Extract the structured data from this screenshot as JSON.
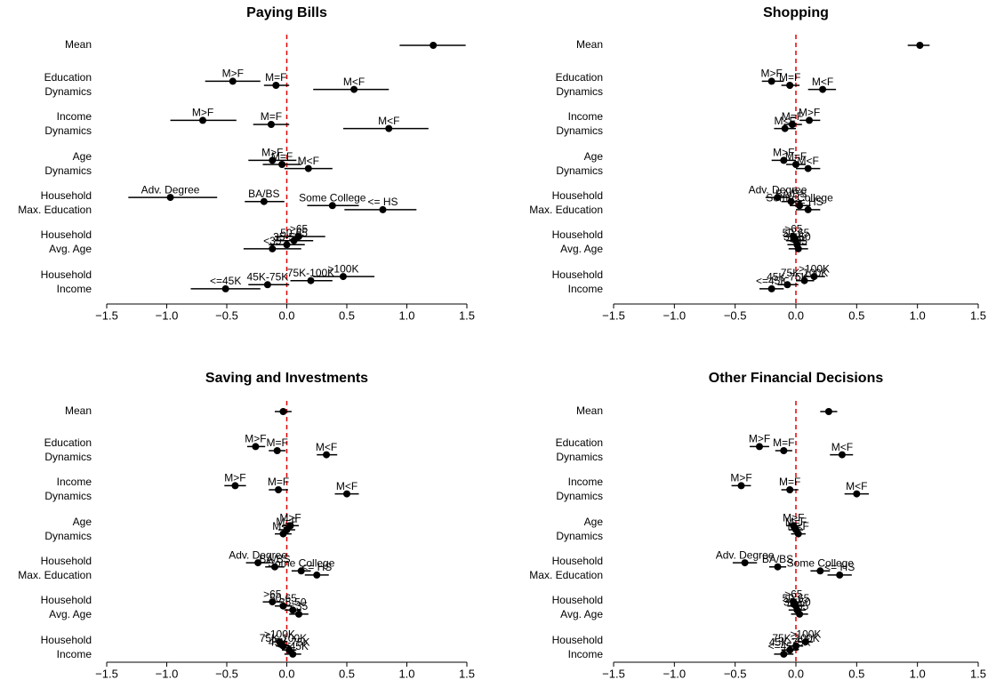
{
  "chart_data": [
    {
      "type": "dot",
      "title": "Paying Bills",
      "xlim": [
        -1.5,
        1.5
      ],
      "xticks": [
        {
          "value": -1.5,
          "label": "−1.5"
        },
        {
          "value": -1,
          "label": "−1.0"
        },
        {
          "value": -0.5,
          "label": "−0.5"
        },
        {
          "value": 0,
          "label": "0.0"
        },
        0.5,
        {
          "value": 1,
          "label": "1.0"
        },
        1.5
      ],
      "reference_color": "#e00000",
      "point_color": "#000000",
      "rows": [
        {
          "name": [
            "Mean"
          ],
          "points": [
            {
              "value": 1.22,
              "lower": 0.94,
              "upper": 1.49
            }
          ]
        },
        {
          "name": [
            "Education",
            "Dynamics"
          ],
          "points": [
            {
              "label": "M>F",
              "value": -0.45,
              "lower": -0.68,
              "upper": -0.22
            },
            {
              "label": "M=F",
              "value": -0.09,
              "lower": -0.19,
              "upper": 0.02
            },
            {
              "label": "M<F",
              "value": 0.56,
              "lower": 0.22,
              "upper": 0.85
            }
          ]
        },
        {
          "name": [
            "Income",
            "Dynamics"
          ],
          "points": [
            {
              "label": "M>F",
              "value": -0.7,
              "lower": -0.97,
              "upper": -0.42
            },
            {
              "label": "M=F",
              "value": -0.13,
              "lower": -0.28,
              "upper": 0.02
            },
            {
              "label": "M<F",
              "value": 0.85,
              "lower": 0.47,
              "upper": 1.18
            }
          ]
        },
        {
          "name": [
            "Age",
            "Dynamics"
          ],
          "points": [
            {
              "label": "M>F",
              "value": -0.12,
              "lower": -0.32,
              "upper": 0.08
            },
            {
              "label": "M=F",
              "value": -0.04,
              "lower": -0.2,
              "upper": 0.12
            },
            {
              "label": "M<F",
              "value": 0.18,
              "lower": -0.02,
              "upper": 0.38
            }
          ]
        },
        {
          "name": [
            "Household",
            "Max. Education"
          ],
          "points": [
            {
              "label": "Adv. Degree",
              "value": -0.97,
              "lower": -1.32,
              "upper": -0.58
            },
            {
              "label": "BA/BS",
              "value": -0.19,
              "lower": -0.35,
              "upper": -0.02
            },
            {
              "label": "Some College",
              "value": 0.38,
              "lower": 0.17,
              "upper": 0.6
            },
            {
              "label": "<= HS",
              "value": 0.8,
              "lower": 0.48,
              "upper": 1.08
            }
          ]
        },
        {
          "name": [
            "Household",
            "Avg. Age"
          ],
          "points": [
            {
              "label": ">65",
              "value": 0.1,
              "lower": -0.1,
              "upper": 0.32
            },
            {
              "label": "50-65",
              "value": 0.06,
              "lower": -0.1,
              "upper": 0.22
            },
            {
              "label": "35-50",
              "value": 0.0,
              "lower": -0.15,
              "upper": 0.15
            },
            {
              "label": "<35",
              "value": -0.12,
              "lower": -0.36,
              "upper": 0.12
            }
          ]
        },
        {
          "name": [
            "Household",
            "Income"
          ],
          "points": [
            {
              "label": ">100K",
              "value": 0.47,
              "lower": 0.22,
              "upper": 0.73
            },
            {
              "label": "75K-100K",
              "value": 0.2,
              "lower": 0.03,
              "upper": 0.38
            },
            {
              "label": "45K-75K",
              "value": -0.16,
              "lower": -0.32,
              "upper": 0.02
            },
            {
              "label": "<=45K",
              "value": -0.51,
              "lower": -0.8,
              "upper": -0.22
            }
          ]
        }
      ]
    },
    {
      "type": "dot",
      "title": "Shopping",
      "xlim": [
        -1.5,
        1.5
      ],
      "xticks": [
        {
          "value": -1.5,
          "label": "−1.5"
        },
        {
          "value": -1,
          "label": "−1.0"
        },
        {
          "value": -0.5,
          "label": "−0.5"
        },
        {
          "value": 0,
          "label": "0.0"
        },
        0.5,
        {
          "value": 1,
          "label": "1.0"
        },
        1.5
      ],
      "reference_color": "#e00000",
      "point_color": "#000000",
      "rows": [
        {
          "name": [
            "Mean"
          ],
          "points": [
            {
              "value": 1.02,
              "lower": 0.92,
              "upper": 1.1
            }
          ]
        },
        {
          "name": [
            "Education",
            "Dynamics"
          ],
          "points": [
            {
              "label": "M>F",
              "value": -0.2,
              "lower": -0.28,
              "upper": -0.1
            },
            {
              "label": "M=F",
              "value": -0.05,
              "lower": -0.12,
              "upper": 0.03
            },
            {
              "label": "M<F",
              "value": 0.22,
              "lower": 0.1,
              "upper": 0.33
            }
          ]
        },
        {
          "name": [
            "Income",
            "Dynamics"
          ],
          "points": [
            {
              "label": "M>F",
              "value": 0.11,
              "lower": 0.03,
              "upper": 0.2
            },
            {
              "label": "M=F",
              "value": -0.03,
              "lower": -0.1,
              "upper": 0.05
            },
            {
              "label": "M<F",
              "value": -0.09,
              "lower": -0.18,
              "upper": 0.0
            }
          ]
        },
        {
          "name": [
            "Age",
            "Dynamics"
          ],
          "points": [
            {
              "label": "M>F",
              "value": -0.1,
              "lower": -0.2,
              "upper": 0.0
            },
            {
              "label": "M=F",
              "value": 0.0,
              "lower": -0.08,
              "upper": 0.08
            },
            {
              "label": "M<F",
              "value": 0.1,
              "lower": 0.0,
              "upper": 0.2
            }
          ]
        },
        {
          "name": [
            "Household",
            "Max. Education"
          ],
          "points": [
            {
              "label": "Adv. Degree",
              "value": -0.15,
              "lower": -0.25,
              "upper": -0.05
            },
            {
              "label": "BA/BS",
              "value": -0.04,
              "lower": -0.12,
              "upper": 0.05
            },
            {
              "label": "Some College",
              "value": 0.03,
              "lower": -0.05,
              "upper": 0.12
            },
            {
              "label": "<= HS",
              "value": 0.1,
              "lower": 0.0,
              "upper": 0.2
            }
          ]
        },
        {
          "name": [
            "Household",
            "Avg. Age"
          ],
          "points": [
            {
              "label": ">65",
              "value": -0.02,
              "lower": -0.1,
              "upper": 0.06
            },
            {
              "label": "50-65",
              "value": 0.0,
              "lower": -0.08,
              "upper": 0.08
            },
            {
              "label": "35-50",
              "value": 0.01,
              "lower": -0.07,
              "upper": 0.09
            },
            {
              "label": "<35",
              "value": 0.02,
              "lower": -0.06,
              "upper": 0.1
            }
          ]
        },
        {
          "name": [
            "Household",
            "Income"
          ],
          "points": [
            {
              "label": ">100K",
              "value": 0.15,
              "lower": 0.07,
              "upper": 0.24
            },
            {
              "label": "75K-100K",
              "value": 0.07,
              "lower": 0.0,
              "upper": 0.15
            },
            {
              "label": "45K-75K",
              "value": -0.07,
              "lower": -0.15,
              "upper": 0.02
            },
            {
              "label": "<=45K",
              "value": -0.2,
              "lower": -0.3,
              "upper": -0.1
            }
          ]
        }
      ]
    },
    {
      "type": "dot",
      "title": "Saving and Investments",
      "xlim": [
        -1.5,
        1.5
      ],
      "xticks": [
        {
          "value": -1.5,
          "label": "−1.5"
        },
        {
          "value": -1,
          "label": "−1.0"
        },
        {
          "value": -0.5,
          "label": "−0.5"
        },
        {
          "value": 0,
          "label": "0.0"
        },
        0.5,
        {
          "value": 1,
          "label": "1.0"
        },
        1.5
      ],
      "reference_color": "#e00000",
      "point_color": "#000000",
      "rows": [
        {
          "name": [
            "Mean"
          ],
          "points": [
            {
              "value": -0.03,
              "lower": -0.1,
              "upper": 0.04
            }
          ]
        },
        {
          "name": [
            "Education",
            "Dynamics"
          ],
          "points": [
            {
              "label": "M>F",
              "value": -0.26,
              "lower": -0.33,
              "upper": -0.18
            },
            {
              "label": "M=F",
              "value": -0.08,
              "lower": -0.15,
              "upper": -0.01
            },
            {
              "label": "M<F",
              "value": 0.33,
              "lower": 0.25,
              "upper": 0.42
            }
          ]
        },
        {
          "name": [
            "Income",
            "Dynamics"
          ],
          "points": [
            {
              "label": "M>F",
              "value": -0.43,
              "lower": -0.52,
              "upper": -0.34
            },
            {
              "label": "M=F",
              "value": -0.07,
              "lower": -0.15,
              "upper": 0.01
            },
            {
              "label": "M<F",
              "value": 0.5,
              "lower": 0.4,
              "upper": 0.6
            }
          ]
        },
        {
          "name": [
            "Age",
            "Dynamics"
          ],
          "points": [
            {
              "label": "M>F",
              "value": 0.03,
              "lower": -0.04,
              "upper": 0.1
            },
            {
              "label": "M=F",
              "value": 0.0,
              "lower": -0.07,
              "upper": 0.07
            },
            {
              "label": "M<F",
              "value": -0.03,
              "lower": -0.1,
              "upper": 0.04
            }
          ]
        },
        {
          "name": [
            "Household",
            "Max. Education"
          ],
          "points": [
            {
              "label": "Adv. Degree",
              "value": -0.24,
              "lower": -0.34,
              "upper": -0.14
            },
            {
              "label": "BA/BS",
              "value": -0.1,
              "lower": -0.18,
              "upper": -0.02
            },
            {
              "label": "Some College",
              "value": 0.12,
              "lower": 0.04,
              "upper": 0.2
            },
            {
              "label": "<= HS",
              "value": 0.25,
              "lower": 0.15,
              "upper": 0.35
            }
          ]
        },
        {
          "name": [
            "Household",
            "Avg. Age"
          ],
          "points": [
            {
              "label": ">65",
              "value": -0.12,
              "lower": -0.2,
              "upper": -0.04
            },
            {
              "label": "50-65",
              "value": -0.03,
              "lower": -0.1,
              "upper": 0.04
            },
            {
              "label": "35-50",
              "value": 0.05,
              "lower": -0.02,
              "upper": 0.12
            },
            {
              "label": "<35",
              "value": 0.1,
              "lower": 0.02,
              "upper": 0.18
            }
          ]
        },
        {
          "name": [
            "Household",
            "Income"
          ],
          "points": [
            {
              "label": ">100K",
              "value": -0.06,
              "lower": -0.12,
              "upper": 0.0
            },
            {
              "label": "75K-100K",
              "value": -0.03,
              "lower": -0.09,
              "upper": 0.03
            },
            {
              "label": "45K-75K",
              "value": 0.02,
              "lower": -0.04,
              "upper": 0.08
            },
            {
              "label": "<=45K",
              "value": 0.05,
              "lower": -0.02,
              "upper": 0.12
            }
          ]
        }
      ]
    },
    {
      "type": "dot",
      "title": "Other Financial Decisions",
      "xlim": [
        -1.5,
        1.5
      ],
      "xticks": [
        {
          "value": -1.5,
          "label": "−1.5"
        },
        {
          "value": -1,
          "label": "−1.0"
        },
        {
          "value": -0.5,
          "label": "−0.5"
        },
        {
          "value": 0,
          "label": "0.0"
        },
        0.5,
        {
          "value": 1,
          "label": "1.0"
        },
        1.5
      ],
      "reference_color": "#e00000",
      "point_color": "#000000",
      "rows": [
        {
          "name": [
            "Mean"
          ],
          "points": [
            {
              "value": 0.27,
              "lower": 0.2,
              "upper": 0.34
            }
          ]
        },
        {
          "name": [
            "Education",
            "Dynamics"
          ],
          "points": [
            {
              "label": "M>F",
              "value": -0.3,
              "lower": -0.38,
              "upper": -0.22
            },
            {
              "label": "M=F",
              "value": -0.1,
              "lower": -0.17,
              "upper": -0.03
            },
            {
              "label": "M<F",
              "value": 0.38,
              "lower": 0.28,
              "upper": 0.47
            }
          ]
        },
        {
          "name": [
            "Income",
            "Dynamics"
          ],
          "points": [
            {
              "label": "M>F",
              "value": -0.45,
              "lower": -0.53,
              "upper": -0.37
            },
            {
              "label": "M=F",
              "value": -0.05,
              "lower": -0.12,
              "upper": 0.02
            },
            {
              "label": "M<F",
              "value": 0.5,
              "lower": 0.4,
              "upper": 0.6
            }
          ]
        },
        {
          "name": [
            "Age",
            "Dynamics"
          ],
          "points": [
            {
              "label": "M>F",
              "value": -0.02,
              "lower": -0.08,
              "upper": 0.04
            },
            {
              "label": "M=F",
              "value": 0.0,
              "lower": -0.06,
              "upper": 0.06
            },
            {
              "label": "M<F",
              "value": 0.02,
              "lower": -0.04,
              "upper": 0.08
            }
          ]
        },
        {
          "name": [
            "Household",
            "Max. Education"
          ],
          "points": [
            {
              "label": "Adv. Degree",
              "value": -0.42,
              "lower": -0.52,
              "upper": -0.32
            },
            {
              "label": "BA/BS",
              "value": -0.15,
              "lower": -0.22,
              "upper": -0.08
            },
            {
              "label": "Some College",
              "value": 0.2,
              "lower": 0.12,
              "upper": 0.28
            },
            {
              "label": "<= HS",
              "value": 0.36,
              "lower": 0.26,
              "upper": 0.46
            }
          ]
        },
        {
          "name": [
            "Household",
            "Avg. Age"
          ],
          "points": [
            {
              "label": ">65",
              "value": -0.02,
              "lower": -0.09,
              "upper": 0.05
            },
            {
              "label": "50-65",
              "value": 0.0,
              "lower": -0.07,
              "upper": 0.07
            },
            {
              "label": "35-50",
              "value": 0.01,
              "lower": -0.06,
              "upper": 0.08
            },
            {
              "label": "<35",
              "value": 0.03,
              "lower": -0.04,
              "upper": 0.1
            }
          ]
        },
        {
          "name": [
            "Household",
            "Income"
          ],
          "points": [
            {
              "label": ">100K",
              "value": 0.08,
              "lower": 0.02,
              "upper": 0.14
            },
            {
              "label": "75K-100K",
              "value": 0.0,
              "lower": -0.06,
              "upper": 0.06
            },
            {
              "label": "45K-75K",
              "value": -0.05,
              "lower": -0.12,
              "upper": 0.02
            },
            {
              "label": "<=45K",
              "value": -0.1,
              "lower": -0.18,
              "upper": -0.02
            }
          ]
        }
      ]
    }
  ]
}
